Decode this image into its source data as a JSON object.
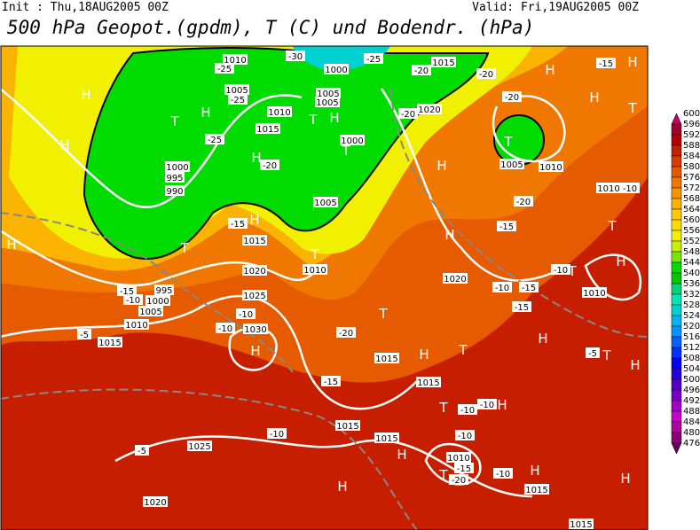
{
  "header": {
    "init": "Init : Thu,18AUG2005 00Z",
    "valid": "Valid: Fri,19AUG2005 00Z",
    "title": "500 hPa Geopot.(gpdm), T (C) und Bodendr. (hPa)"
  },
  "colorbar": {
    "levels": [
      600,
      596,
      592,
      588,
      584,
      580,
      576,
      572,
      568,
      564,
      560,
      556,
      552,
      548,
      544,
      540,
      536,
      532,
      528,
      524,
      520,
      516,
      512,
      508,
      504,
      500,
      496,
      492,
      488,
      484,
      480,
      476
    ],
    "colors": [
      "#c0006e",
      "#a0002a",
      "#b40000",
      "#c81e00",
      "#dc3c00",
      "#e65a00",
      "#f07800",
      "#f59600",
      "#fab400",
      "#ffc800",
      "#ffdc00",
      "#f0f000",
      "#c8f000",
      "#78e600",
      "#00dc00",
      "#00c800",
      "#00d278",
      "#00e6b4",
      "#00d2d2",
      "#00b4f0",
      "#0096ff",
      "#0064ff",
      "#0032ff",
      "#0000ff",
      "#2800dc",
      "#5000c8",
      "#7800c8",
      "#a000c8",
      "#c800c8",
      "#b400a0",
      "#8c0078",
      "#64005a"
    ]
  },
  "pressure_systems": [
    "H",
    "H",
    "T",
    "H",
    "H",
    "T",
    "H",
    "T",
    "H",
    "T",
    "H",
    "T",
    "T",
    "H",
    "H",
    "T",
    "H",
    "H",
    "H",
    "T",
    "H",
    "T",
    "H",
    "T",
    "T",
    "H",
    "H",
    "T",
    "H",
    "T",
    "H",
    "H",
    "T",
    "H",
    "H",
    "H"
  ],
  "field_labels": [
    "1010",
    "-25",
    "1005",
    "-25",
    "1010",
    "1015",
    "-25",
    "1000",
    "995",
    "990",
    "-20",
    "-30",
    "1000",
    "-25",
    "1015",
    "-20",
    "1005",
    "1005",
    "1000",
    "1005",
    "-20",
    "1020",
    "-20",
    "-20",
    "1005",
    "1010",
    "-20",
    "-15",
    "1010",
    "-10",
    "-15",
    "1015",
    "1020",
    "1025",
    "-10",
    "-10",
    "1030",
    "1015",
    "-5",
    "1010",
    "1005",
    "1000",
    "995",
    "-15",
    "-10",
    "1010",
    "-20",
    "-15",
    "1015",
    "-15",
    "1020",
    "-10",
    "-15",
    "-15",
    "-10",
    "1010",
    "-5",
    "1015",
    "-10",
    "-10",
    "1015",
    "1015",
    "-10",
    "-10",
    "1010",
    "-15",
    "-20",
    "-10",
    "1015",
    "1025",
    "-5",
    "1020",
    "1015"
  ]
}
